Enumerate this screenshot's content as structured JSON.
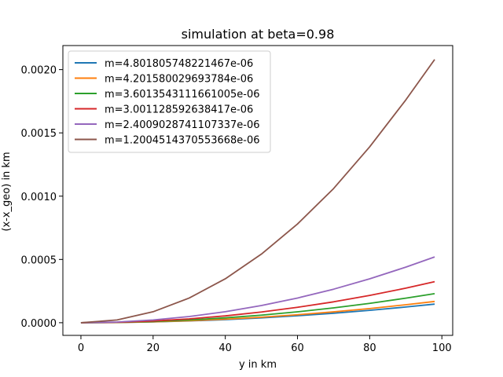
{
  "chart_data": {
    "type": "line",
    "title": "simulation at beta=0.98",
    "xlabel": "y in km",
    "ylabel": "(x-x_geo) in km",
    "xlim": [
      -5,
      103
    ],
    "ylim": [
      -0.0001,
      0.00219
    ],
    "xticks": [
      0,
      20,
      40,
      60,
      80,
      100
    ],
    "xtick_labels": [
      "0",
      "20",
      "40",
      "60",
      "80",
      "100"
    ],
    "yticks": [
      0,
      0.0005,
      0.001,
      0.0015,
      0.002
    ],
    "ytick_labels": [
      "0.0000",
      "0.0005",
      "0.0010",
      "0.0015",
      "0.0020"
    ],
    "grid": false,
    "legend_position": "upper-left",
    "x": [
      0,
      10,
      20,
      30,
      40,
      50,
      60,
      70,
      80,
      90,
      98
    ],
    "series": [
      {
        "name": "m=4.801805748221467e-06",
        "color": "#1f77b4",
        "values": [
          0,
          1.5e-06,
          6.1e-06,
          1.38e-05,
          2.45e-05,
          3.83e-05,
          5.51e-05,
          7.5e-05,
          9.8e-05,
          0.000124,
          0.000147
        ]
      },
      {
        "name": "m=4.201580029693784e-06",
        "color": "#ff7f0e",
        "values": [
          0,
          1.7e-06,
          7e-06,
          1.57e-05,
          2.8e-05,
          4.37e-05,
          6.3e-05,
          8.57e-05,
          0.000112,
          0.000142,
          0.000168
        ]
      },
      {
        "name": "m=3.6013543111661005e-06",
        "color": "#2ca02c",
        "values": [
          0,
          2.4e-06,
          9.6e-06,
          2.16e-05,
          3.83e-05,
          5.99e-05,
          8.62e-05,
          0.000117,
          0.000153,
          0.000194,
          0.00023
        ]
      },
      {
        "name": "m=3.001128592638417e-06",
        "color": "#d62728",
        "values": [
          0,
          3.4e-06,
          1.35e-05,
          3.04e-05,
          5.4e-05,
          8.44e-05,
          0.000122,
          0.000165,
          0.000216,
          0.000273,
          0.000324
        ]
      },
      {
        "name": "m=2.4009028741107337e-06",
        "color": "#9467bd",
        "values": [
          0,
          5.4e-06,
          2.17e-05,
          4.88e-05,
          8.67e-05,
          0.000136,
          0.000195,
          0.000265,
          0.000347,
          0.000439,
          0.00052
        ]
      },
      {
        "name": "m=1.2004514370553668e-06",
        "color": "#8c564b",
        "values": [
          0,
          2.17e-05,
          8.67e-05,
          0.000195,
          0.000347,
          0.000542,
          0.00078,
          0.00106,
          0.00139,
          0.00176,
          0.00208
        ]
      }
    ]
  }
}
